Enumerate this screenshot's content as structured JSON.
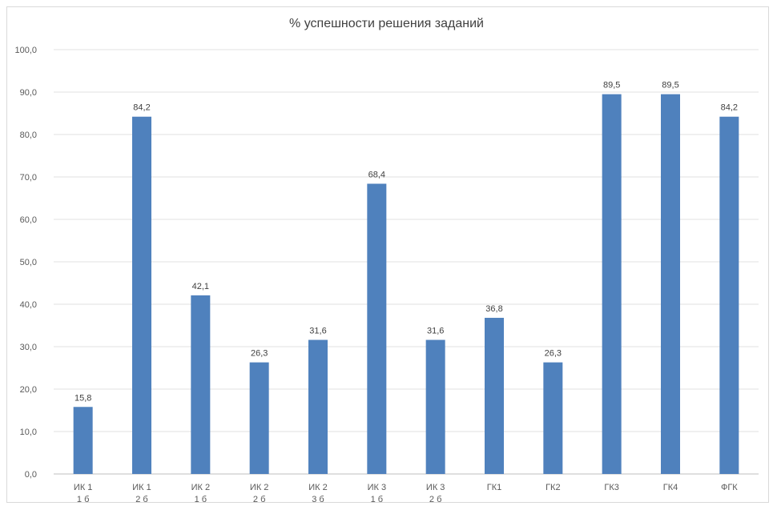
{
  "chart_data": {
    "type": "bar",
    "title": "% успешности решения заданий",
    "xlabel": "",
    "ylabel": "",
    "ylim": [
      0,
      100
    ],
    "yticks": [
      "0,0",
      "10,0",
      "20,0",
      "30,0",
      "40,0",
      "50,0",
      "60,0",
      "70,0",
      "80,0",
      "90,0",
      "100,0"
    ],
    "categories": [
      [
        "ИК 1",
        "1 б"
      ],
      [
        "ИК 1",
        "2 б"
      ],
      [
        "ИК 2",
        "1 б"
      ],
      [
        "ИК 2",
        "2 б"
      ],
      [
        "ИК 2",
        "3 б"
      ],
      [
        "ИК 3",
        "1 б"
      ],
      [
        "ИК 3",
        "2 б"
      ],
      [
        "ГК1"
      ],
      [
        "ГК2"
      ],
      [
        "ГК3"
      ],
      [
        "ГК4"
      ],
      [
        "ФГК"
      ]
    ],
    "values": [
      15.8,
      84.2,
      42.1,
      26.3,
      31.6,
      68.4,
      31.6,
      36.8,
      26.3,
      89.5,
      89.5,
      84.2
    ],
    "value_labels": [
      "15,8",
      "84,2",
      "42,1",
      "26,3",
      "31,6",
      "68,4",
      "31,6",
      "36,8",
      "26,3",
      "89,5",
      "89,5",
      "84,2"
    ],
    "bar_color": "#4f81bd",
    "grid": true,
    "legend": "none"
  }
}
